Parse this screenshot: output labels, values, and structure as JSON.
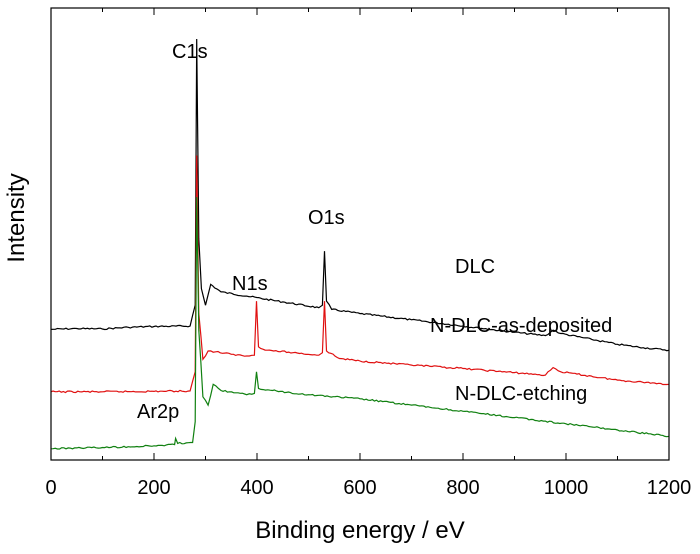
{
  "chart_data": {
    "type": "line",
    "title": "",
    "xlabel": "Binding energy / eV",
    "ylabel": "Intensity",
    "xlim": [
      0,
      1200
    ],
    "xticks": [
      0,
      200,
      400,
      600,
      800,
      1000,
      1200
    ],
    "yticks_shown": false,
    "grid": false,
    "colors": {
      "DLC": "#000000",
      "N-DLC-as-deposited": "#e01010",
      "N-DLC-etching": "#108010"
    },
    "series": [
      {
        "name": "DLC",
        "color": "#000000",
        "points": [
          [
            0,
            0.302
          ],
          [
            50,
            0.304
          ],
          [
            100,
            0.303
          ],
          [
            150,
            0.307
          ],
          [
            200,
            0.309
          ],
          [
            270,
            0.31
          ],
          [
            280,
            0.36
          ],
          [
            283,
            1.0
          ],
          [
            287,
            0.52
          ],
          [
            292,
            0.4
          ],
          [
            300,
            0.36
          ],
          [
            310,
            0.41
          ],
          [
            330,
            0.392
          ],
          [
            380,
            0.382
          ],
          [
            450,
            0.368
          ],
          [
            520,
            0.354
          ],
          [
            527,
            0.36
          ],
          [
            531,
            0.49
          ],
          [
            535,
            0.37
          ],
          [
            545,
            0.35
          ],
          [
            600,
            0.34
          ],
          [
            700,
            0.325
          ],
          [
            800,
            0.31
          ],
          [
            900,
            0.295
          ],
          [
            960,
            0.287
          ],
          [
            975,
            0.3
          ],
          [
            990,
            0.292
          ],
          [
            1050,
            0.278
          ],
          [
            1100,
            0.266
          ],
          [
            1150,
            0.258
          ],
          [
            1200,
            0.252
          ]
        ]
      },
      {
        "name": "N-DLC-as-deposited",
        "color": "#e01010",
        "points": [
          [
            0,
            0.152
          ],
          [
            100,
            0.152
          ],
          [
            200,
            0.153
          ],
          [
            270,
            0.154
          ],
          [
            280,
            0.2
          ],
          [
            283,
            0.72
          ],
          [
            287,
            0.34
          ],
          [
            295,
            0.23
          ],
          [
            305,
            0.25
          ],
          [
            320,
            0.248
          ],
          [
            350,
            0.242
          ],
          [
            380,
            0.238
          ],
          [
            395,
            0.24
          ],
          [
            399,
            0.37
          ],
          [
            403,
            0.26
          ],
          [
            420,
            0.252
          ],
          [
            470,
            0.246
          ],
          [
            520,
            0.24
          ],
          [
            527,
            0.246
          ],
          [
            531,
            0.37
          ],
          [
            535,
            0.25
          ],
          [
            560,
            0.232
          ],
          [
            600,
            0.226
          ],
          [
            700,
            0.216
          ],
          [
            800,
            0.208
          ],
          [
            900,
            0.198
          ],
          [
            960,
            0.192
          ],
          [
            975,
            0.21
          ],
          [
            990,
            0.2
          ],
          [
            1100,
            0.18
          ],
          [
            1200,
            0.17
          ]
        ]
      },
      {
        "name": "N-DLC-etching",
        "color": "#108010",
        "points": [
          [
            0,
            0.015
          ],
          [
            50,
            0.017
          ],
          [
            100,
            0.018
          ],
          [
            150,
            0.02
          ],
          [
            200,
            0.022
          ],
          [
            240,
            0.025
          ],
          [
            242,
            0.04
          ],
          [
            246,
            0.028
          ],
          [
            275,
            0.03
          ],
          [
            280,
            0.08
          ],
          [
            283,
            0.62
          ],
          [
            287,
            0.3
          ],
          [
            295,
            0.14
          ],
          [
            305,
            0.12
          ],
          [
            315,
            0.17
          ],
          [
            330,
            0.155
          ],
          [
            380,
            0.145
          ],
          [
            395,
            0.148
          ],
          [
            399,
            0.2
          ],
          [
            403,
            0.16
          ],
          [
            430,
            0.155
          ],
          [
            500,
            0.145
          ],
          [
            600,
            0.135
          ],
          [
            700,
            0.12
          ],
          [
            800,
            0.105
          ],
          [
            900,
            0.09
          ],
          [
            1000,
            0.075
          ],
          [
            1100,
            0.06
          ],
          [
            1200,
            0.045
          ]
        ]
      }
    ],
    "annotations": [
      {
        "text": "C1s",
        "x": 283,
        "y": 1.0
      },
      {
        "text": "O1s",
        "x": 531,
        "y": 0.5
      },
      {
        "text": "N1s",
        "x": 399,
        "y": 0.38
      },
      {
        "text": "Ar2p",
        "x": 242,
        "y": 0.04
      },
      {
        "text": "DLC",
        "x": 1000,
        "y": 0.3
      },
      {
        "text": "N-DLC-as-deposited",
        "x": 1000,
        "y": 0.2
      },
      {
        "text": "N-DLC-etching",
        "x": 1000,
        "y": 0.07
      }
    ]
  }
}
